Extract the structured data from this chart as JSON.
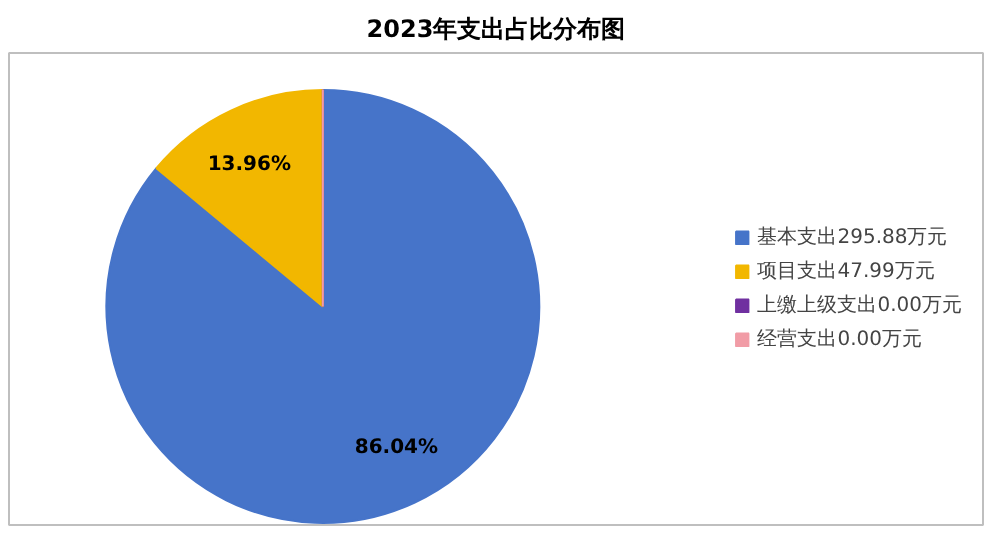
{
  "chart_data": {
    "type": "pie",
    "title": "2023年支出占比分布图",
    "categories": [
      "基本支出295.88万元",
      "项目支出47.99万元",
      "上缴上级支出0.00万元",
      "经营支出0.00万元"
    ],
    "values": [
      86.04,
      13.96,
      0,
      0
    ],
    "colors": [
      "#4674c9",
      "#f2b700",
      "#7030a0",
      "#f19ca6"
    ],
    "value_labels": [
      "86.04%",
      "13.96%",
      null,
      null
    ],
    "legend": "right"
  }
}
